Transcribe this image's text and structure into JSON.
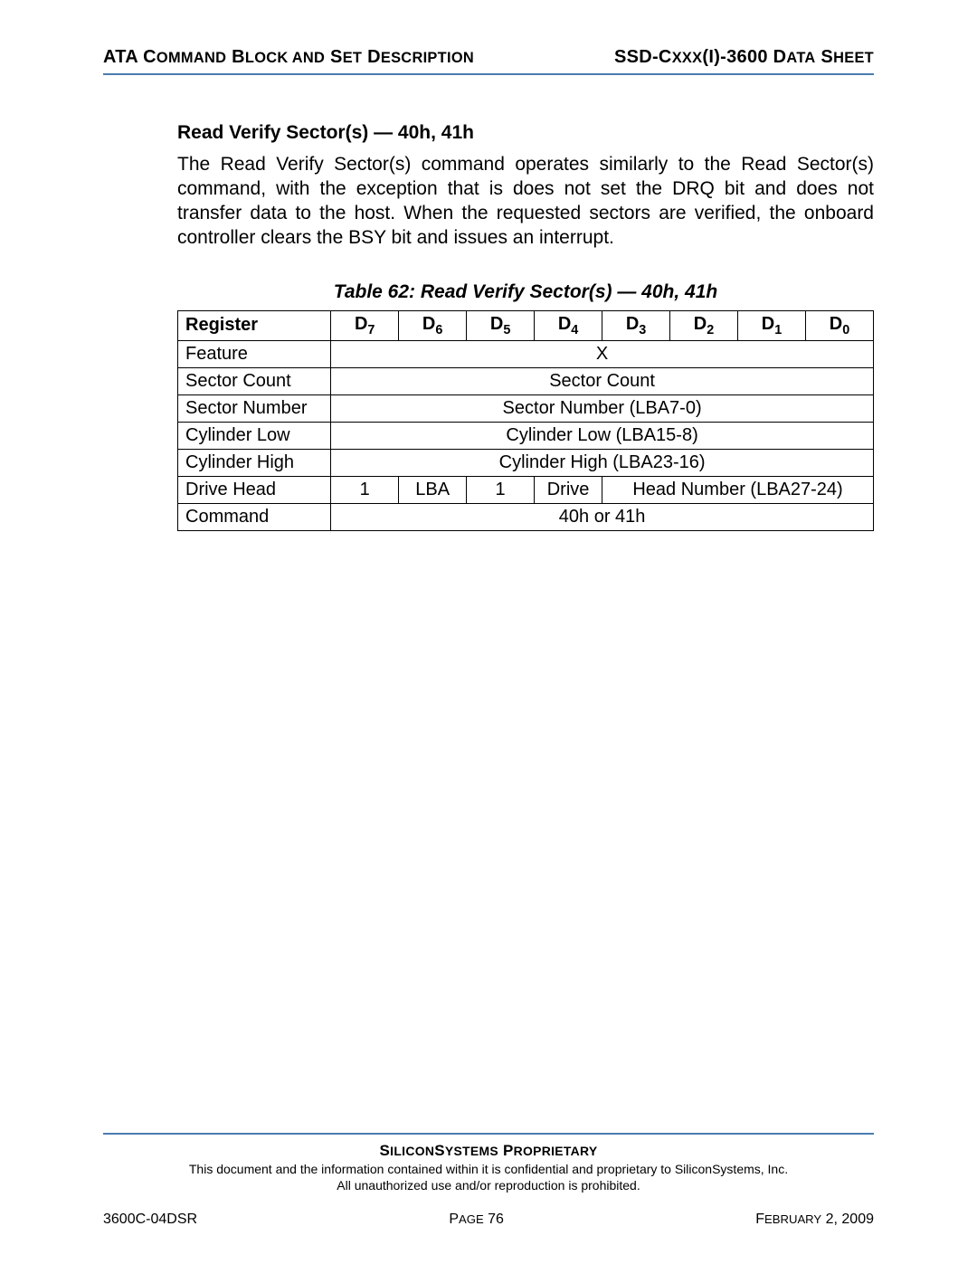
{
  "header": {
    "left_html": "ATA C<span class=\"scw\">OMMAND</span> B<span class=\"scw\">LOCK AND</span> S<span class=\"scw\">ET</span> D<span class=\"scw\">ESCRIPTION</span>",
    "left_plain": "ATA COMMAND BLOCK AND SET DESCRIPTION",
    "right_html": "SSD-C<span class=\"scw\">XXX</span>(I)-3600 D<span class=\"scw\">ATA</span> S<span class=\"scw\">HEET</span>",
    "right_plain": "SSD-CXXX(I)-3600 DATA SHEET"
  },
  "section": {
    "title": "Read Verify Sector(s) — 40h, 41h",
    "body": "The Read Verify Sector(s) command operates similarly to the Read Sector(s) command, with the exception that is does not set the DRQ bit and does not transfer data to the host. When the requested sectors are verified, the onboard controller clears the BSY bit and issues an interrupt."
  },
  "table": {
    "caption": "Table 62:  Read Verify Sector(s) — 40h, 41h",
    "header_label": "Register",
    "bit_headers": [
      "D7",
      "D6",
      "D5",
      "D4",
      "D3",
      "D2",
      "D1",
      "D0"
    ],
    "rows": [
      {
        "label": "Feature",
        "cells": [
          {
            "span": 8,
            "text": "X"
          }
        ]
      },
      {
        "label": "Sector Count",
        "cells": [
          {
            "span": 8,
            "text": "Sector Count"
          }
        ]
      },
      {
        "label": "Sector Number",
        "cells": [
          {
            "span": 8,
            "text": "Sector Number (LBA7-0)"
          }
        ]
      },
      {
        "label": "Cylinder Low",
        "cells": [
          {
            "span": 8,
            "text": "Cylinder Low (LBA15-8)"
          }
        ]
      },
      {
        "label": "Cylinder High",
        "cells": [
          {
            "span": 8,
            "text": "Cylinder High (LBA23-16)"
          }
        ]
      },
      {
        "label": "Drive Head",
        "cells": [
          {
            "span": 1,
            "text": "1"
          },
          {
            "span": 1,
            "text": "LBA"
          },
          {
            "span": 1,
            "text": "1"
          },
          {
            "span": 1,
            "text": "Drive"
          },
          {
            "span": 4,
            "text": "Head Number (LBA27-24)"
          }
        ]
      },
      {
        "label": "Command",
        "cells": [
          {
            "span": 8,
            "text": "40h or 41h"
          }
        ]
      }
    ]
  },
  "footer": {
    "proprietary_html": "S<span class=\"scw\">ILICON</span>S<span class=\"scw\">YSTEMS</span> P<span class=\"scw\">ROPRIETARY</span>",
    "proprietary_plain": "SILICONSYSTEMS PROPRIETARY",
    "confidential_line1": "This document and the information contained within it is confidential and proprietary to SiliconSystems, Inc.",
    "confidential_line2": "All unauthorized use and/or reproduction is prohibited.",
    "doc_id": "3600C-04DSR",
    "page_label_html": "P<span class=\"scw\">AGE</span> 76",
    "page_label_plain": "PAGE 76",
    "date_html": "F<span class=\"scw\">EBRUARY</span> 2, 2009",
    "date_plain": "FEBRUARY 2, 2009"
  },
  "colors": {
    "rule": "#4a7cb0",
    "text": "#000000",
    "bg": "#ffffff"
  }
}
